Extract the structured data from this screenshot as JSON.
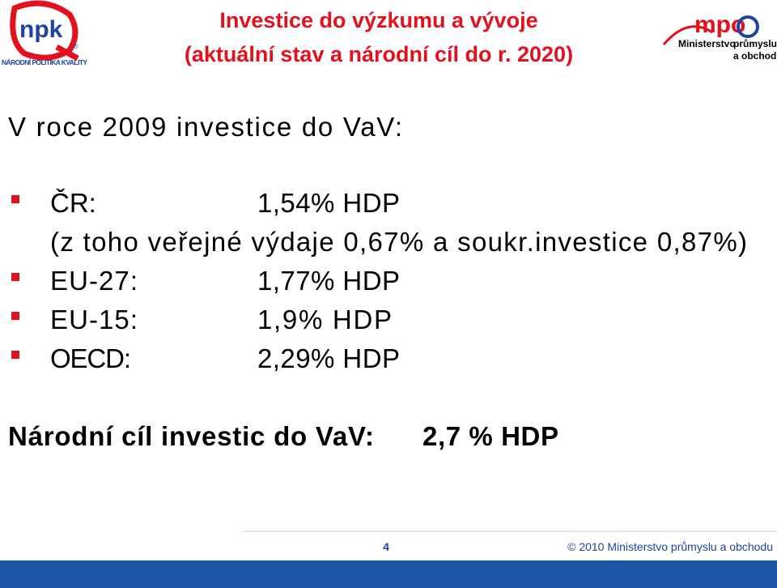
{
  "header": {
    "title": "Investice do výzkumu a vývoje",
    "subtitle": "(aktuální stav a národní cíl do r. 2020)"
  },
  "logo_left": {
    "mark": "npk",
    "registered": "®",
    "caption": "NÁRODNÍ POLITIKA KVALITY"
  },
  "logo_right": {
    "mark": "mpo",
    "lines": [
      "Ministerstvo",
      "průmyslu",
      "a obchodu"
    ]
  },
  "body": {
    "intro": "V roce 2009 investice do VaV:",
    "items": [
      {
        "label": "ČR:",
        "value": "1,54% HDP",
        "note": "(z toho veřejné výdaje 0,67% a soukr.investice 0,87%)"
      },
      {
        "label": "EU-27:",
        "value": "1,77% HDP"
      },
      {
        "label": "EU-15:",
        "value": "1,9%  HDP"
      },
      {
        "label": "OECD:",
        "value": "2,29% HDP"
      }
    ],
    "target": {
      "label": "Národní cíl investic do VaV:",
      "value": "2,7 % HDP"
    }
  },
  "footer": {
    "page": "4",
    "copyright": "© 2010 Ministerstvo průmyslu a obchodu"
  }
}
